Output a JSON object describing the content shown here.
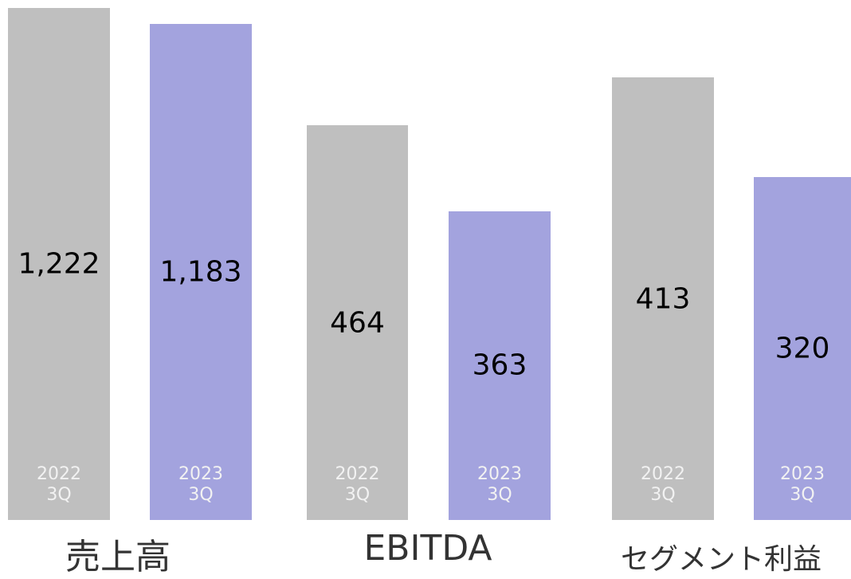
{
  "chart_data": [
    {
      "type": "bar",
      "title": "売上高",
      "categories": [
        "2022 3Q",
        "2023 3Q"
      ],
      "values": [
        1222,
        1183
      ],
      "value_labels": [
        "1,222",
        "1,183"
      ],
      "colors": [
        "#bfbfbf",
        "#a3a3de"
      ]
    },
    {
      "type": "bar",
      "title": "EBITDA",
      "categories": [
        "2022 3Q",
        "2023 3Q"
      ],
      "values": [
        464,
        363
      ],
      "value_labels": [
        "464",
        "363"
      ],
      "colors": [
        "#bfbfbf",
        "#a3a3de"
      ]
    },
    {
      "type": "bar",
      "title": "セグメント利益",
      "categories": [
        "2022 3Q",
        "2023 3Q"
      ],
      "values": [
        413,
        320
      ],
      "value_labels": [
        "413",
        "320"
      ],
      "colors": [
        "#bfbfbf",
        "#a3a3de"
      ]
    }
  ]
}
